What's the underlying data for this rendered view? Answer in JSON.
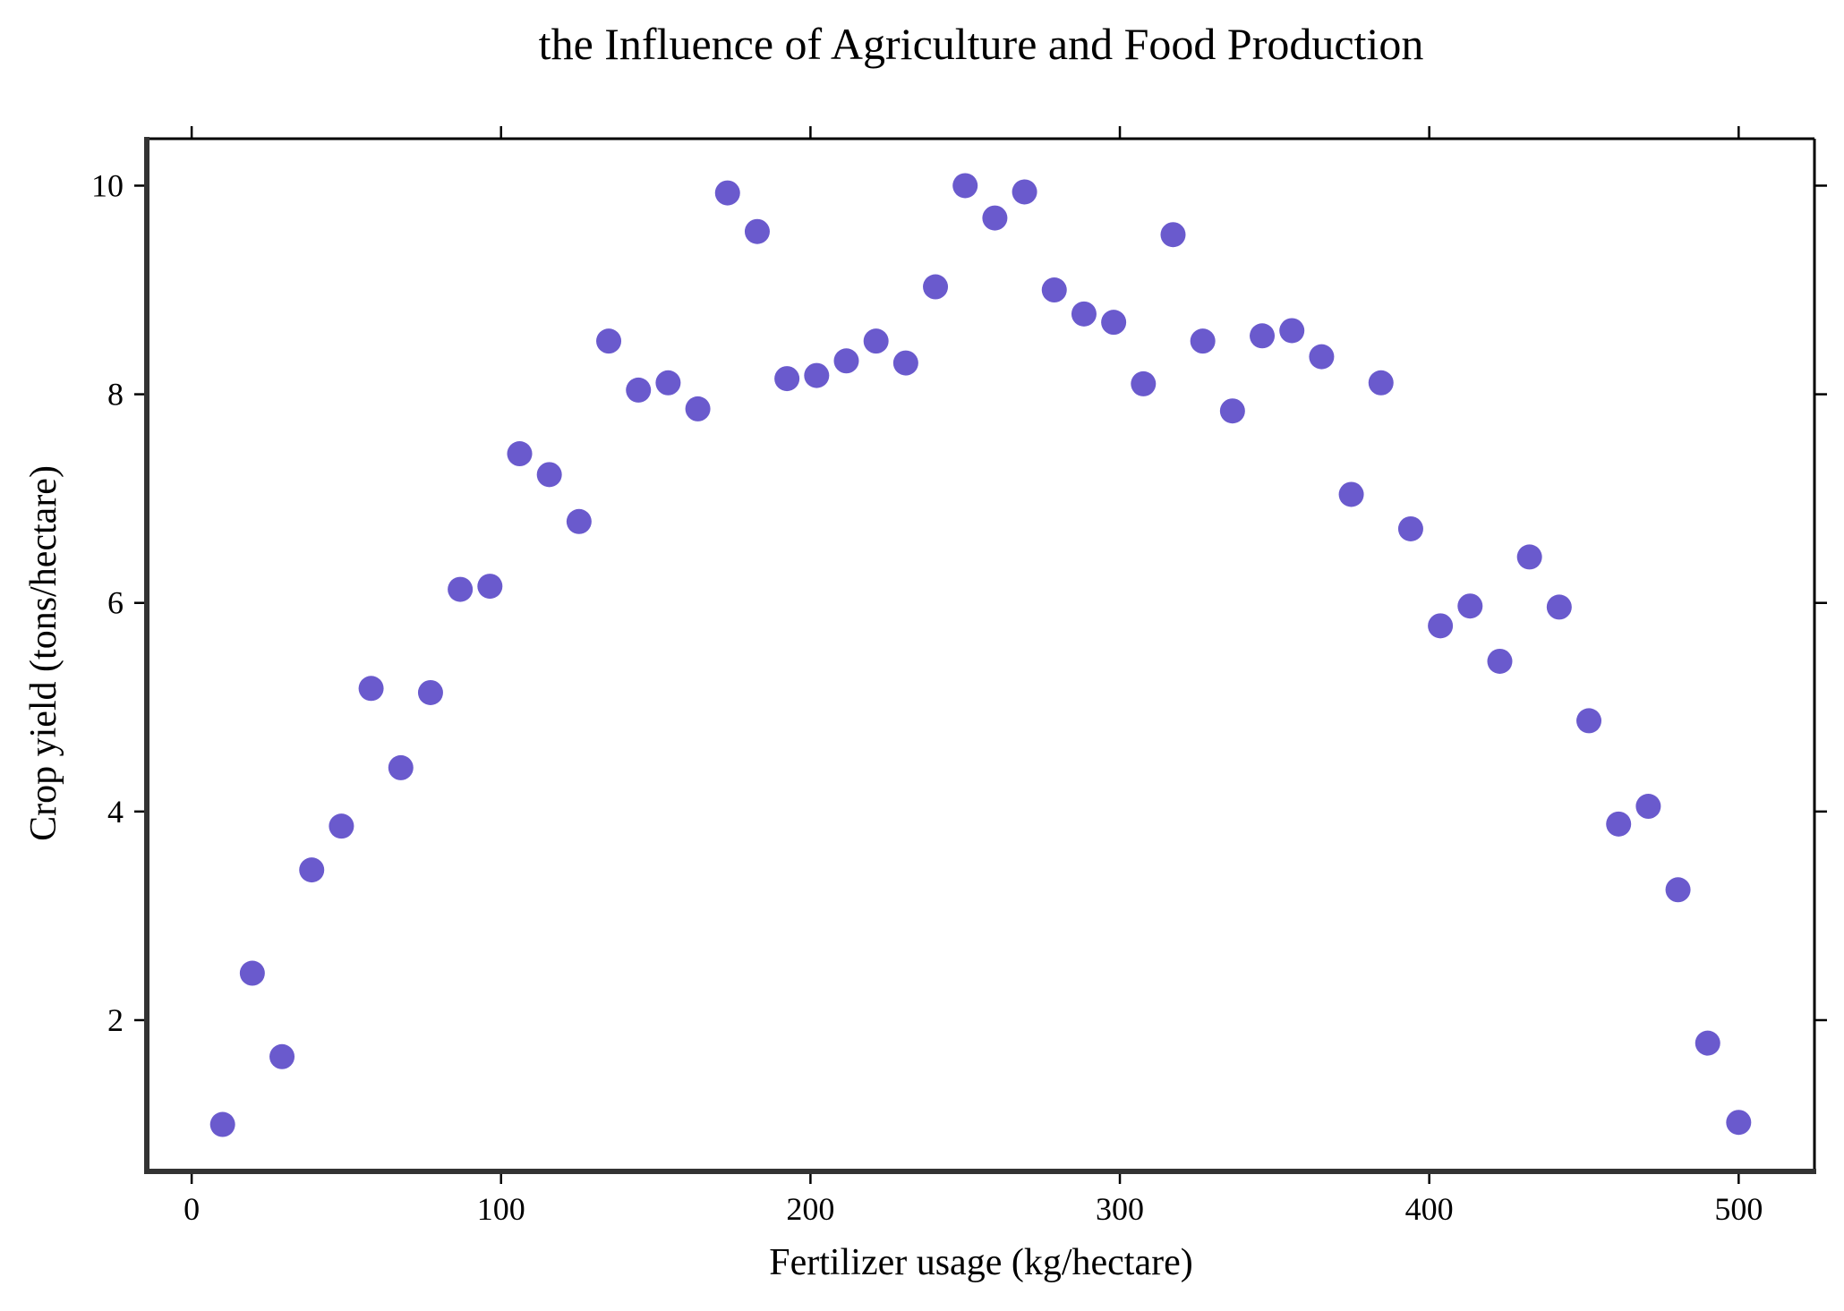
{
  "chart_data": {
    "type": "scatter",
    "title": "the Influence of Agriculture and Food Production",
    "xlabel": "Fertilizer usage (kg/hectare)",
    "ylabel": "Crop yield (tons/hectare)",
    "xlim": [
      -14.5,
      524.5
    ],
    "ylim": [
      0.55,
      10.45
    ],
    "xticks": [
      0,
      100,
      200,
      300,
      400,
      500
    ],
    "yticks": [
      2,
      4,
      6,
      8,
      10
    ],
    "grid": false,
    "marker_color": "#6a5acd",
    "series": [
      {
        "x": [
          10.0,
          19.6,
          29.2,
          38.8,
          48.4,
          58.0,
          67.6,
          77.2,
          86.8,
          96.4,
          106.0,
          115.6,
          125.2,
          134.8,
          144.4,
          154.0,
          163.6,
          173.2,
          182.8,
          192.4,
          202.0,
          211.6,
          221.2,
          230.8,
          240.4,
          250.0,
          259.6,
          269.2,
          278.8,
          288.4,
          298.0,
          307.6,
          317.2,
          326.8,
          336.4,
          346.0,
          355.6,
          365.2,
          374.8,
          384.4,
          394.0,
          403.6,
          413.2,
          422.8,
          432.4,
          442.0,
          451.6,
          461.2,
          470.8,
          480.4,
          490.0,
          500.0
        ],
        "y": [
          1.0,
          2.45,
          1.65,
          3.44,
          3.86,
          5.18,
          4.42,
          5.14,
          6.13,
          6.16,
          7.43,
          7.23,
          6.78,
          8.51,
          8.04,
          8.11,
          7.86,
          9.93,
          9.56,
          8.15,
          8.18,
          8.32,
          8.51,
          8.3,
          9.03,
          10.0,
          9.69,
          9.94,
          9.0,
          8.77,
          8.69,
          8.1,
          9.53,
          8.51,
          7.84,
          8.56,
          8.61,
          8.36,
          7.04,
          8.11,
          6.71,
          5.78,
          5.97,
          5.44,
          6.44,
          5.96,
          4.87,
          3.88,
          4.05,
          3.25,
          1.78,
          1.02
        ]
      }
    ]
  }
}
